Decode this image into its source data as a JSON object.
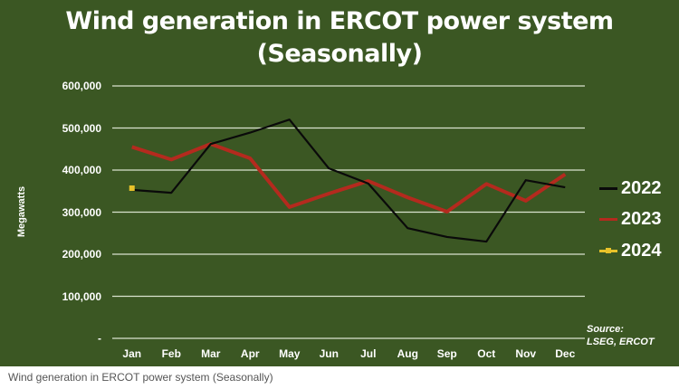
{
  "chart_data": {
    "type": "line",
    "title": "Wind generation in ERCOT power system (Seasonally)",
    "title_lines": [
      "Wind generation in ERCOT power system",
      "(Seasonally)"
    ],
    "xlabel": "",
    "ylabel": "Megawatts",
    "categories": [
      "Jan",
      "Feb",
      "Mar",
      "Apr",
      "May",
      "Jun",
      "Jul",
      "Aug",
      "Sep",
      "Oct",
      "Nov",
      "Dec"
    ],
    "yticks": [
      "-",
      "100,000",
      "200,000",
      "300,000",
      "400,000",
      "500,000",
      "600,000"
    ],
    "ytick_values": [
      0,
      100000,
      200000,
      300000,
      400000,
      500000,
      600000
    ],
    "ylim": [
      0,
      600000
    ],
    "grid": true,
    "legend_position": "right",
    "series": [
      {
        "name": "2022",
        "color": "#0a0a0a",
        "values": [
          353000,
          346000,
          462000,
          489000,
          520000,
          404000,
          368000,
          262000,
          241000,
          230000,
          376000,
          359000
        ]
      },
      {
        "name": "2023",
        "color": "#b42a1e",
        "values": [
          455000,
          425000,
          462000,
          428000,
          312000,
          344000,
          374000,
          335000,
          301000,
          367000,
          327000,
          390000
        ]
      },
      {
        "name": "2024",
        "color": "#e8c22a",
        "values": [
          357000,
          null,
          null,
          null,
          null,
          null,
          null,
          null,
          null,
          null,
          null,
          null
        ]
      }
    ],
    "annotations": [
      "Source:",
      "LSEG, ERCOT"
    ]
  },
  "legend": {
    "items": [
      {
        "label": "2022",
        "color": "#0a0a0a"
      },
      {
        "label": "2023",
        "color": "#b42a1e"
      },
      {
        "label": "2024",
        "color": "#e8c22a"
      }
    ]
  },
  "source": {
    "line1": "Source:",
    "line2": "LSEG, ERCOT"
  },
  "caption": "Wind generation in ERCOT power system (Seasonally)",
  "colors": {
    "background": "#3b5723",
    "gridline": "#d9e3cf",
    "text": "#ffffff"
  }
}
